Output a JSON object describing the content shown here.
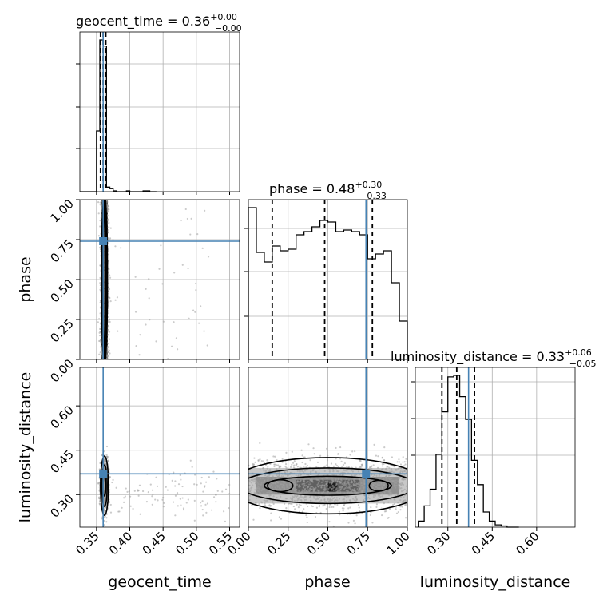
{
  "chart_data": {
    "type": "corner",
    "parameters": [
      "geocent_time",
      "phase",
      "luminosity_distance"
    ],
    "truths": {
      "geocent_time": 0.36,
      "phase": 0.74,
      "luminosity_distance": 0.37
    },
    "titles": [
      {
        "param": "geocent_time",
        "text": "geocent_time = 0.36",
        "plus": "+0.00",
        "minus": "−0.00",
        "quantiles": [
          0.356,
          0.36,
          0.364
        ]
      },
      {
        "param": "phase",
        "text": "phase = 0.48",
        "plus": "+0.30",
        "minus": "−0.33",
        "quantiles": [
          0.15,
          0.48,
          0.78
        ]
      },
      {
        "param": "luminosity_distance",
        "text": "luminosity_distance = 0.33",
        "plus": "+0.06",
        "minus": "−0.05",
        "quantiles": [
          0.28,
          0.33,
          0.39
        ]
      }
    ],
    "axes": {
      "geocent_time": {
        "range": [
          0.325,
          0.565
        ],
        "ticks": [
          0.35,
          0.4,
          0.45,
          0.5,
          0.55
        ],
        "tick_labels": [
          "0.35",
          "0.40",
          "0.45",
          "0.50",
          "0.55"
        ]
      },
      "phase": {
        "range": [
          0.0,
          1.0
        ],
        "ticks": [
          0.0,
          0.25,
          0.5,
          0.75,
          1.0
        ],
        "tick_labels": [
          "0.00",
          "0.25",
          "0.50",
          "0.75",
          "1.00"
        ]
      },
      "luminosity_distance": {
        "range": [
          0.19,
          0.73
        ],
        "ticks": [
          0.3,
          0.45,
          0.6
        ],
        "tick_labels": [
          "0.30",
          "0.45",
          "0.60"
        ]
      }
    },
    "histograms": {
      "geocent_time": {
        "bin_edges": [
          0.325,
          0.33,
          0.335,
          0.34,
          0.345,
          0.35,
          0.355,
          0.36,
          0.365,
          0.37,
          0.375,
          0.38,
          0.385,
          0.39,
          0.395,
          0.4,
          0.405,
          0.41,
          0.415,
          0.42,
          0.425,
          0.43,
          0.435,
          0.44
        ],
        "counts": [
          0,
          0,
          0,
          0,
          0,
          0.4,
          1.0,
          0.96,
          0.03,
          0.02,
          0.005,
          0,
          0,
          0,
          0.005,
          0,
          0,
          0,
          0,
          0.005,
          0.005,
          0,
          0
        ]
      },
      "phase": {
        "bin_edges": [
          0.0,
          0.05,
          0.1,
          0.15,
          0.2,
          0.25,
          0.3,
          0.35,
          0.4,
          0.45,
          0.5,
          0.55,
          0.6,
          0.65,
          0.7,
          0.75,
          0.8,
          0.85,
          0.9,
          0.95,
          1.0
        ],
        "counts": [
          0.95,
          0.67,
          0.61,
          0.71,
          0.68,
          0.69,
          0.78,
          0.8,
          0.83,
          0.87,
          0.86,
          0.8,
          0.81,
          0.8,
          0.78,
          0.63,
          0.66,
          0.68,
          0.48,
          0.24
        ]
      },
      "luminosity_distance": {
        "bin_edges": [
          0.2,
          0.22,
          0.24,
          0.26,
          0.28,
          0.3,
          0.32,
          0.34,
          0.36,
          0.38,
          0.4,
          0.42,
          0.44,
          0.46,
          0.48,
          0.5,
          0.52,
          0.54
        ],
        "counts": [
          0.04,
          0.14,
          0.25,
          0.48,
          0.76,
          0.99,
          1.0,
          0.86,
          0.71,
          0.44,
          0.28,
          0.1,
          0.04,
          0.015,
          0.008,
          0,
          0
        ]
      }
    },
    "grid": true,
    "colors": {
      "truth": "#4682b4",
      "hist": "#000000",
      "contour": "#000000",
      "points": "#a0a0a0",
      "grid": "#b0b0b0"
    }
  }
}
